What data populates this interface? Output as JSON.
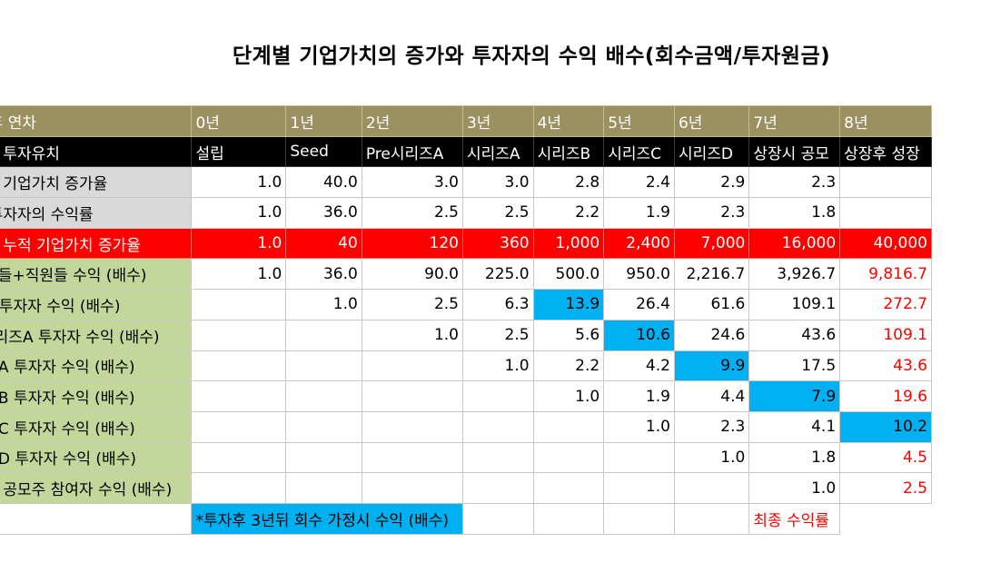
{
  "title": "단계별 기업가치의 증가와 투자자의 수익 배수(회수금액/투자원금)",
  "columns": {
    "label_header": "투자 후 연차",
    "years": [
      "0년",
      "1년",
      "2년",
      "3년",
      "4년",
      "5년",
      "6년",
      "7년",
      "8년"
    ]
  },
  "stage_row": {
    "label": "단계별 투자유치",
    "stages": [
      "설립",
      "Seed",
      "Pre시리즈A",
      "시리즈A",
      "시리즈B",
      "시리즈C",
      "시리즈D",
      "상장시 공모",
      "상장후 성장"
    ]
  },
  "rows": [
    {
      "label": "단계별 기업가치 증가율",
      "cells": [
        "1.0",
        "40.0",
        "3.0",
        "3.0",
        "2.8",
        "2.4",
        "2.9",
        "2.3",
        ""
      ]
    },
    {
      "label": "신규 투자자의 수익률",
      "cells": [
        "1.0",
        "36.0",
        "2.5",
        "2.5",
        "2.2",
        "1.9",
        "2.3",
        "1.8",
        ""
      ]
    },
    {
      "label": "단계별 누적 기업가치 증가율",
      "cells": [
        "1.0",
        "40",
        "120",
        "360",
        "1,000",
        "2,400",
        "7,000",
        "16,000",
        "40,000"
      ]
    },
    {
      "label": "창업자들+직원들 수익 (배수)",
      "cells": [
        "1.0",
        "36.0",
        "90.0",
        "225.0",
        "500.0",
        "950.0",
        "2,216.7",
        "3,926.7",
        "9,816.7"
      ]
    },
    {
      "label": "Seed 투자자 수익 (배수)",
      "cells": [
        "",
        "1.0",
        "2.5",
        "6.3",
        "13.9",
        "26.4",
        "61.6",
        "109.1",
        "272.7"
      ]
    },
    {
      "label": "Pre시리즈A 투자자 수익 (배수)",
      "cells": [
        "",
        "",
        "1.0",
        "2.5",
        "5.6",
        "10.6",
        "24.6",
        "43.6",
        "109.1"
      ]
    },
    {
      "label": "시리즈A 투자자 수익 (배수)",
      "cells": [
        "",
        "",
        "",
        "1.0",
        "2.2",
        "4.2",
        "9.9",
        "17.5",
        "43.6"
      ]
    },
    {
      "label": "시리즈B 투자자 수익 (배수)",
      "cells": [
        "",
        "",
        "",
        "",
        "1.0",
        "1.9",
        "4.4",
        "7.9",
        "19.6"
      ]
    },
    {
      "label": "시리즈C 투자자 수익 (배수)",
      "cells": [
        "",
        "",
        "",
        "",
        "",
        "1.0",
        "2.3",
        "4.1",
        "10.2"
      ]
    },
    {
      "label": "시리즈D 투자자 수익 (배수)",
      "cells": [
        "",
        "",
        "",
        "",
        "",
        "",
        "1.0",
        "1.8",
        "4.5"
      ]
    },
    {
      "label": "상장시 공모주 참여자 수익 (배수)",
      "cells": [
        "",
        "",
        "",
        "",
        "",
        "",
        "",
        "1.0",
        "2.5"
      ]
    }
  ],
  "footer": {
    "note": "*투자후 3년뒤 회수 가정시 수익 (배수)",
    "final_label": "최종 수익률"
  },
  "colors": {
    "header_band": "#9a9060",
    "stage_band": "#000000",
    "cumulative_band": "#ff0000",
    "label_gray": "#d9d9d9",
    "label_green": "#c4d79b",
    "highlight": "#00b0f0",
    "accent_red": "#ff0000"
  }
}
